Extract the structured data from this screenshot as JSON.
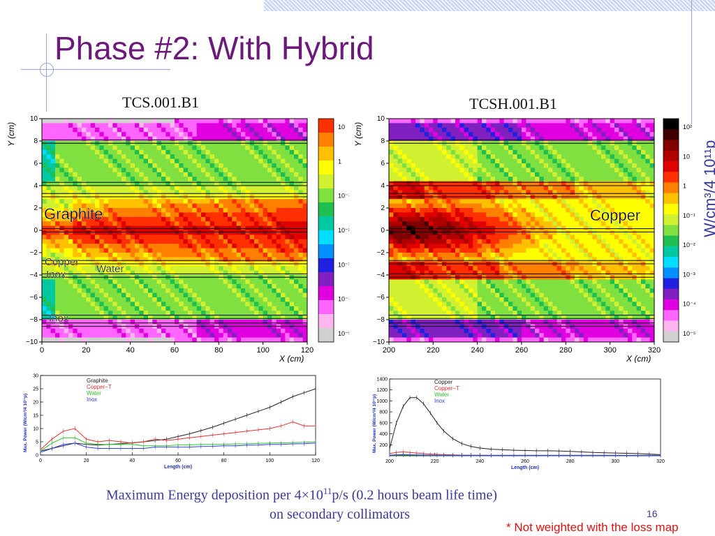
{
  "slide": {
    "title": "Phase #2: With Hybrid",
    "caption_line1": "Maximum Energy deposition per 4×10",
    "caption_sup": "11",
    "caption_line1_rest": "p/s  (0.2 hours beam life time)",
    "caption_line2": "on secondary collimators",
    "page_number": "16",
    "footnote": "* Not weighted with the loss map"
  },
  "unit_label": "W/cm³/4 10¹¹p",
  "colors": {
    "title": "#6b1a7a",
    "caption": "#3a3a9c",
    "footnote": "#e01010"
  },
  "chart_data": [
    {
      "type": "heatmap",
      "title": "TCS.001.B1",
      "xlabel": "X (cm)",
      "ylabel": "Y (cm)",
      "xlim": [
        0,
        120
      ],
      "ylim": [
        -10,
        10
      ],
      "x_ticks": [
        "0",
        "20",
        "40",
        "60",
        "80",
        "100",
        "120"
      ],
      "y_ticks": [
        "10",
        "8",
        "6",
        "4",
        "2",
        "0",
        "−2",
        "−4",
        "−6",
        "−8",
        "−10"
      ],
      "colorbar_ticks": [
        "10",
        "1",
        "10⁻¹",
        "10⁻²",
        "10⁻³",
        "10⁻⁴",
        "10⁻⁵"
      ],
      "annotations": [
        "Graphite",
        "Copper",
        "Inox",
        "Water",
        "Inox"
      ]
    },
    {
      "type": "heatmap",
      "title": "TCSH.001.B1",
      "xlabel": "X (cm)",
      "ylabel": "Y (cm)",
      "xlim": [
        200,
        320
      ],
      "ylim": [
        -10,
        10
      ],
      "x_ticks": [
        "200",
        "220",
        "240",
        "260",
        "280",
        "300",
        "320"
      ],
      "y_ticks": [
        "10",
        "8",
        "6",
        "4",
        "2",
        "0",
        "−2",
        "−4",
        "−6",
        "−8",
        "−10"
      ],
      "colorbar_ticks": [
        "10²",
        "10",
        "1",
        "10⁻¹",
        "10⁻²",
        "10⁻³",
        "10⁻⁴",
        "10⁻⁵"
      ],
      "annotations": [
        "Copper"
      ]
    },
    {
      "type": "line",
      "xlabel": "Length (cm)",
      "ylabel": "Max. Power (W/cm³/4 10¹¹p)",
      "xlim": [
        0,
        120
      ],
      "ylim": [
        0,
        30
      ],
      "x_ticks": [
        "0",
        "20",
        "40",
        "60",
        "80",
        "100",
        "120"
      ],
      "y_ticks": [
        "0",
        "5",
        "10",
        "15",
        "20",
        "25",
        "30"
      ],
      "x": [
        0,
        5,
        10,
        15,
        20,
        25,
        30,
        35,
        40,
        45,
        50,
        55,
        60,
        65,
        70,
        75,
        80,
        85,
        90,
        95,
        100,
        105,
        110,
        115,
        120
      ],
      "series": [
        {
          "name": "Graphite",
          "color": "#222222",
          "values": [
            1.5,
            2.5,
            3.5,
            4.5,
            4,
            3.8,
            4,
            4.3,
            4.6,
            5,
            5.5,
            6,
            7,
            8,
            9.2,
            10.5,
            12,
            13.5,
            15,
            16.5,
            18,
            20,
            22,
            23.5,
            25
          ]
        },
        {
          "name": "Copper−T",
          "color": "#e03030",
          "values": [
            2,
            6,
            9,
            10,
            6,
            5,
            5.5,
            5,
            4.5,
            5,
            6,
            5.5,
            6,
            6.5,
            7,
            7.5,
            8,
            8.5,
            9,
            9.5,
            10,
            11,
            12.5,
            11,
            11
          ]
        },
        {
          "name": "Water",
          "color": "#30c030",
          "values": [
            1.5,
            4.5,
            6.5,
            6.5,
            4.5,
            4,
            4,
            4,
            4,
            3.5,
            3.5,
            3.5,
            3.8,
            3.8,
            4,
            4,
            4,
            4.2,
            4.2,
            4.4,
            4.5,
            4.6,
            4.7,
            4.8,
            5
          ]
        },
        {
          "name": "Inox",
          "color": "#3040e0",
          "values": [
            1,
            2.5,
            4,
            4.5,
            3,
            2.5,
            2.5,
            2.5,
            2.5,
            2.5,
            3,
            3,
            3,
            3,
            3.2,
            3.3,
            3.5,
            3.5,
            3.7,
            3.8,
            4,
            4,
            4.2,
            4.3,
            4.5
          ]
        }
      ]
    },
    {
      "type": "line",
      "xlabel": "Length (cm)",
      "ylabel": "Max. Power (W/cm³/4 10¹¹p)",
      "xlim": [
        200,
        320
      ],
      "ylim": [
        0,
        1400
      ],
      "x_ticks": [
        "200",
        "220",
        "240",
        "260",
        "280",
        "300",
        "320"
      ],
      "y_ticks": [
        "200",
        "400",
        "600",
        "800",
        "1000",
        "1200",
        "1400"
      ],
      "x": [
        200,
        203,
        206,
        209,
        212,
        215,
        218,
        221,
        224,
        228,
        232,
        236,
        240,
        245,
        250,
        255,
        260,
        265,
        270,
        275,
        280,
        285,
        290,
        295,
        300,
        305,
        310,
        315,
        320
      ],
      "series": [
        {
          "name": "Copper",
          "color": "#222222",
          "values": [
            130,
            600,
            900,
            1060,
            1060,
            950,
            780,
            600,
            450,
            310,
            220,
            170,
            140,
            120,
            110,
            100,
            95,
            90,
            90,
            85,
            80,
            70,
            60,
            55,
            50,
            45,
            40,
            30,
            20
          ]
        },
        {
          "name": "Copper−T",
          "color": "#e03030",
          "values": [
            40,
            60,
            70,
            60,
            50,
            40,
            30,
            25,
            20,
            15,
            12,
            10,
            10,
            8,
            8,
            8,
            8,
            8,
            8,
            8,
            8,
            8,
            8,
            8,
            8,
            8,
            8,
            8,
            8
          ]
        },
        {
          "name": "Water",
          "color": "#30c030",
          "values": [
            10,
            12,
            14,
            13,
            12,
            10,
            9,
            8,
            7,
            6,
            6,
            6,
            6,
            6,
            6,
            6,
            6,
            6,
            6,
            6,
            6,
            6,
            6,
            6,
            6,
            6,
            6,
            6,
            6
          ]
        },
        {
          "name": "Inox",
          "color": "#3040e0",
          "values": [
            12,
            18,
            20,
            18,
            16,
            14,
            12,
            10,
            9,
            8,
            8,
            8,
            8,
            8,
            8,
            8,
            8,
            8,
            8,
            8,
            8,
            8,
            8,
            8,
            8,
            8,
            8,
            8,
            8
          ]
        }
      ]
    }
  ]
}
